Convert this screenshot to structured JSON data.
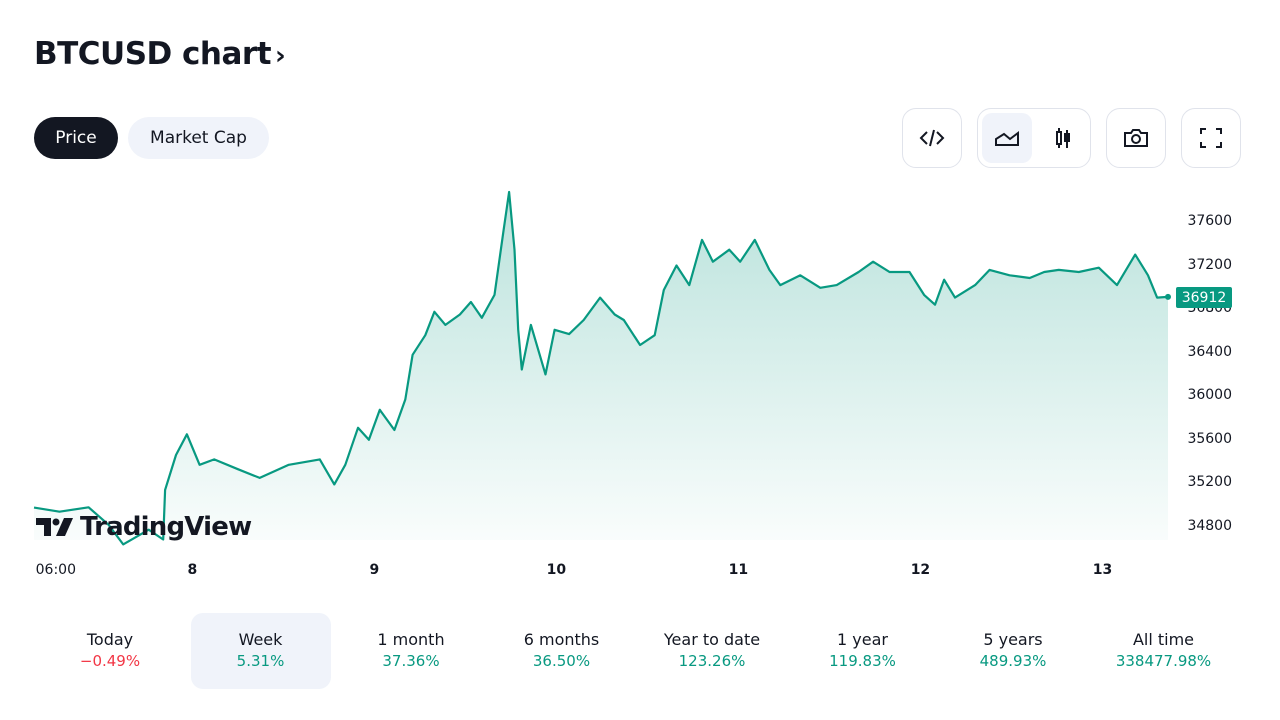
{
  "header": {
    "title": "BTCUSD chart",
    "chevron": "›"
  },
  "tabs": [
    {
      "label": "Price",
      "active": true
    },
    {
      "label": "Market Cap",
      "active": false
    }
  ],
  "toolbar": {
    "icons": [
      "embed-code-icon",
      "area-chart-icon",
      "candlestick-icon",
      "camera-icon",
      "fullscreen-icon"
    ],
    "active": "area-chart-icon"
  },
  "logo": "TradingView",
  "colors": {
    "line": "#089981",
    "negative": "#f23645",
    "positive": "#089981",
    "active_bg": "#f0f3fa"
  },
  "chart_data": {
    "type": "area",
    "title": "",
    "x_unit": "day of month",
    "xlim": [
      7.13,
      13.36
    ],
    "ylim": [
      34680,
      37985
    ],
    "x_tick_labels": [
      {
        "x": 7.25,
        "label": "06:00"
      },
      {
        "x": 8,
        "label": "8"
      },
      {
        "x": 9,
        "label": "9"
      },
      {
        "x": 10,
        "label": "10"
      },
      {
        "x": 11,
        "label": "11"
      },
      {
        "x": 12,
        "label": "12"
      },
      {
        "x": 13,
        "label": "13"
      }
    ],
    "y_ticks": [
      34800,
      35200,
      35600,
      36000,
      36400,
      36800,
      37200,
      37600
    ],
    "last_price": "36912",
    "grid": false,
    "series": [
      {
        "x": [
          7.13,
          7.27,
          7.43,
          7.54,
          7.62,
          7.76,
          7.84,
          7.85,
          7.91,
          7.97,
          8.04,
          8.12,
          8.25,
          8.37,
          8.53,
          8.7,
          8.78,
          8.84,
          8.91,
          8.97,
          9.03,
          9.11,
          9.17,
          9.21,
          9.28,
          9.33,
          9.39,
          9.47,
          9.53,
          9.59,
          9.66,
          9.71,
          9.74,
          9.77,
          9.79,
          9.81,
          9.86,
          9.94,
          9.99,
          10.07,
          10.15,
          10.24,
          10.32,
          10.37,
          10.46,
          10.54,
          10.59,
          10.66,
          10.73,
          10.8,
          10.86,
          10.95,
          11.01,
          11.09,
          11.17,
          11.23,
          11.34,
          11.45,
          11.54,
          11.66,
          11.74,
          11.83,
          11.94,
          12.02,
          12.08,
          12.13,
          12.19,
          12.3,
          12.38,
          12.49,
          12.6,
          12.68,
          12.76,
          12.87,
          12.98,
          13.08,
          13.18,
          13.25,
          13.3,
          13.36
        ],
        "y": [
          34977,
          34940,
          34980,
          34820,
          34640,
          34775,
          34685,
          35140,
          35460,
          35650,
          35370,
          35420,
          35330,
          35250,
          35370,
          35420,
          35190,
          35370,
          35710,
          35600,
          35875,
          35690,
          35970,
          36380,
          36560,
          36775,
          36655,
          36750,
          36865,
          36720,
          36930,
          37525,
          37875,
          37345,
          36610,
          36245,
          36655,
          36200,
          36610,
          36570,
          36700,
          36905,
          36750,
          36700,
          36470,
          36560,
          36975,
          37200,
          37020,
          37435,
          37235,
          37345,
          37235,
          37435,
          37160,
          37020,
          37110,
          36995,
          37020,
          37140,
          37235,
          37140,
          37140,
          36930,
          36840,
          37070,
          36905,
          37020,
          37160,
          37110,
          37085,
          37140,
          37160,
          37140,
          37180,
          37020,
          37300,
          37110,
          36905,
          36912
        ]
      }
    ]
  },
  "periods": [
    {
      "label": "Today",
      "value": "−0.49%",
      "dir": "neg"
    },
    {
      "label": "Week",
      "value": "5.31%",
      "dir": "pos",
      "active": true
    },
    {
      "label": "1 month",
      "value": "37.36%",
      "dir": "pos"
    },
    {
      "label": "6 months",
      "value": "36.50%",
      "dir": "pos"
    },
    {
      "label": "Year to date",
      "value": "123.26%",
      "dir": "pos"
    },
    {
      "label": "1 year",
      "value": "119.83%",
      "dir": "pos"
    },
    {
      "label": "5 years",
      "value": "489.93%",
      "dir": "pos"
    },
    {
      "label": "All time",
      "value": "338477.98%",
      "dir": "pos"
    }
  ]
}
